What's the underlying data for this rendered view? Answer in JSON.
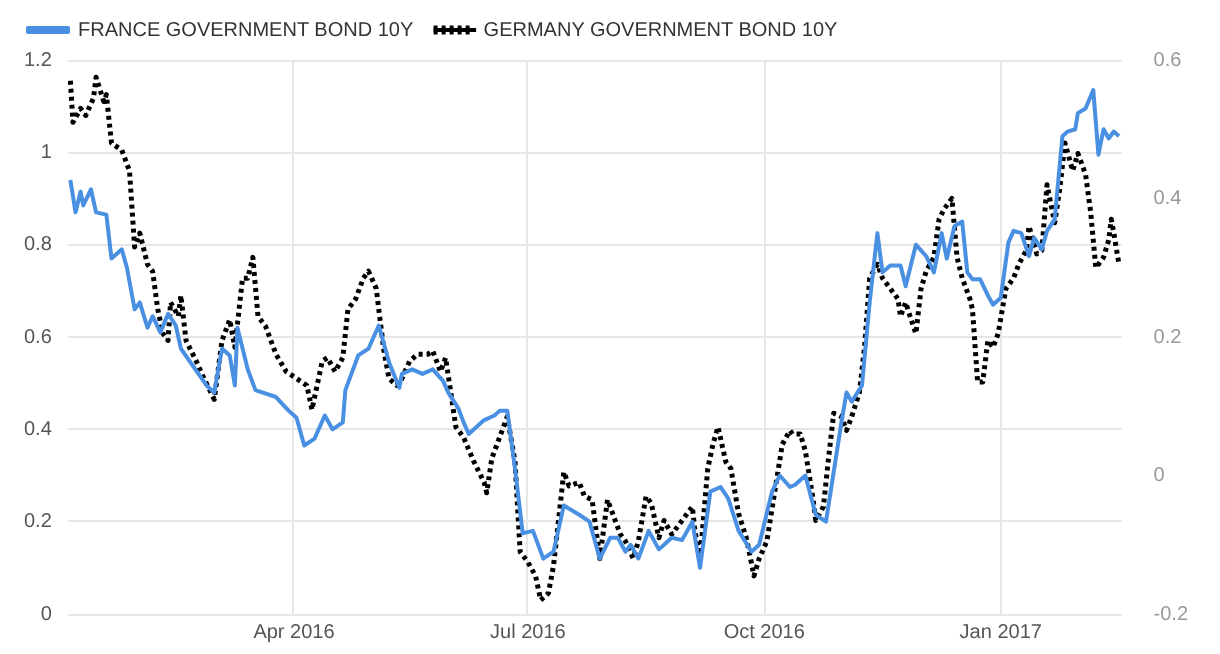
{
  "chart_data": {
    "type": "line",
    "legend": "top left",
    "grid": true,
    "marker": "none",
    "xlim": [
      "2016-01-04",
      "2017-02-17"
    ],
    "xticks": [
      {
        "value": "2016-04-01",
        "label": "Apr 2016"
      },
      {
        "value": "2016-07-01",
        "label": "Jul 2016"
      },
      {
        "value": "2016-10-01",
        "label": "Oct 2016"
      },
      {
        "value": "2017-01-01",
        "label": "Jan 2017"
      }
    ],
    "ylim": [
      0,
      1.2
    ],
    "yticks": [
      0,
      0.2,
      0.4,
      0.6,
      0.8,
      1,
      1.2
    ],
    "y2lim": [
      -0.2,
      0.6
    ],
    "y2ticks": [
      -0.2,
      0,
      0.2,
      0.4,
      0.6
    ],
    "series": [
      {
        "name": "FRANCE GOVERNMENT BOND 10Y",
        "color": "#4a90e2",
        "line_style": "solid",
        "axis": "y",
        "x": [
          "2016-01-05",
          "2016-01-07",
          "2016-01-09",
          "2016-01-10",
          "2016-01-13",
          "2016-01-15",
          "2016-01-19",
          "2016-01-21",
          "2016-01-25",
          "2016-01-27",
          "2016-01-30",
          "2016-02-01",
          "2016-02-04",
          "2016-02-06",
          "2016-02-09",
          "2016-02-12",
          "2016-02-15",
          "2016-02-17",
          "2016-02-22",
          "2016-02-27",
          "2016-03-01",
          "2016-03-04",
          "2016-03-07",
          "2016-03-09",
          "2016-03-10",
          "2016-03-14",
          "2016-03-17",
          "2016-03-25",
          "2016-03-30",
          "2016-04-02",
          "2016-04-05",
          "2016-04-09",
          "2016-04-13",
          "2016-04-16",
          "2016-04-20",
          "2016-04-21",
          "2016-04-26",
          "2016-04-30",
          "2016-05-04",
          "2016-05-08",
          "2016-05-12",
          "2016-05-13",
          "2016-05-17",
          "2016-05-21",
          "2016-05-25",
          "2016-05-29",
          "2016-05-31",
          "2016-06-04",
          "2016-06-06",
          "2016-06-08",
          "2016-06-14",
          "2016-06-18",
          "2016-06-20",
          "2016-06-23",
          "2016-06-26",
          "2016-06-29",
          "2016-07-03",
          "2016-07-07",
          "2016-07-11",
          "2016-07-15",
          "2016-07-21",
          "2016-07-25",
          "2016-07-29",
          "2016-08-02",
          "2016-08-05",
          "2016-08-08",
          "2016-08-10",
          "2016-08-13",
          "2016-08-17",
          "2016-08-21",
          "2016-08-26",
          "2016-08-30",
          "2016-09-03",
          "2016-09-06",
          "2016-09-10",
          "2016-09-14",
          "2016-09-17",
          "2016-09-21",
          "2016-09-26",
          "2016-09-29",
          "2016-10-04",
          "2016-10-07",
          "2016-10-11",
          "2016-10-13",
          "2016-10-17",
          "2016-10-21",
          "2016-10-25",
          "2016-10-31",
          "2016-11-02",
          "2016-11-04",
          "2016-11-08",
          "2016-11-11",
          "2016-11-14",
          "2016-11-16",
          "2016-11-19",
          "2016-11-23",
          "2016-11-25",
          "2016-11-29",
          "2016-12-03",
          "2016-12-06",
          "2016-12-09",
          "2016-12-11",
          "2016-12-14",
          "2016-12-17",
          "2016-12-19",
          "2016-12-21",
          "2016-12-24",
          "2016-12-27",
          "2016-12-29",
          "2017-01-01",
          "2017-01-04",
          "2017-01-06",
          "2017-01-09",
          "2017-01-12",
          "2017-01-14",
          "2017-01-17",
          "2017-01-19",
          "2017-01-22",
          "2017-01-25",
          "2017-01-27",
          "2017-01-30",
          "2017-01-31",
          "2017-02-03",
          "2017-02-06",
          "2017-02-08",
          "2017-02-10",
          "2017-02-12",
          "2017-02-14",
          "2017-02-16"
        ],
        "values": [
          0.94,
          0.87,
          0.915,
          0.885,
          0.92,
          0.87,
          0.865,
          0.77,
          0.79,
          0.75,
          0.66,
          0.675,
          0.62,
          0.645,
          0.61,
          0.65,
          0.625,
          0.575,
          0.535,
          0.495,
          0.48,
          0.575,
          0.56,
          0.495,
          0.62,
          0.53,
          0.485,
          0.47,
          0.44,
          0.425,
          0.365,
          0.38,
          0.43,
          0.4,
          0.415,
          0.485,
          0.56,
          0.575,
          0.625,
          0.545,
          0.49,
          0.52,
          0.53,
          0.52,
          0.53,
          0.505,
          0.48,
          0.445,
          0.415,
          0.39,
          0.42,
          0.43,
          0.44,
          0.44,
          0.315,
          0.175,
          0.18,
          0.12,
          0.135,
          0.235,
          0.215,
          0.2,
          0.12,
          0.165,
          0.165,
          0.135,
          0.15,
          0.12,
          0.18,
          0.14,
          0.165,
          0.16,
          0.2,
          0.1,
          0.265,
          0.275,
          0.25,
          0.18,
          0.135,
          0.15,
          0.265,
          0.3,
          0.275,
          0.28,
          0.3,
          0.215,
          0.2,
          0.415,
          0.48,
          0.46,
          0.495,
          0.675,
          0.825,
          0.74,
          0.755,
          0.755,
          0.71,
          0.8,
          0.775,
          0.74,
          0.825,
          0.77,
          0.84,
          0.85,
          0.74,
          0.725,
          0.725,
          0.69,
          0.67,
          0.685,
          0.805,
          0.83,
          0.825,
          0.775,
          0.815,
          0.79,
          0.83,
          0.855,
          1.035,
          1.045,
          1.05,
          1.085,
          1.095,
          1.135,
          0.995,
          1.05,
          1.03,
          1.045,
          1.035
        ]
      },
      {
        "name": "GERMANY GOVERNMENT BOND 10Y",
        "color": "#000000",
        "line_style": "dotted",
        "axis": "y2",
        "x": [
          "2016-01-05",
          "2016-01-06",
          "2016-01-09",
          "2016-01-11",
          "2016-01-14",
          "2016-01-15",
          "2016-01-18",
          "2016-01-19",
          "2016-01-21",
          "2016-01-23",
          "2016-01-25",
          "2016-01-28",
          "2016-01-30",
          "2016-02-01",
          "2016-02-04",
          "2016-02-06",
          "2016-02-08",
          "2016-02-10",
          "2016-02-12",
          "2016-02-13",
          "2016-02-16",
          "2016-02-17",
          "2016-02-19",
          "2016-02-23",
          "2016-02-26",
          "2016-03-01",
          "2016-03-04",
          "2016-03-07",
          "2016-03-09",
          "2016-03-12",
          "2016-03-14",
          "2016-03-16",
          "2016-03-18",
          "2016-03-21",
          "2016-03-25",
          "2016-03-29",
          "2016-04-02",
          "2016-04-06",
          "2016-04-08",
          "2016-04-12",
          "2016-04-14",
          "2016-04-17",
          "2016-04-20",
          "2016-04-22",
          "2016-04-25",
          "2016-04-28",
          "2016-04-30",
          "2016-05-03",
          "2016-05-06",
          "2016-05-08",
          "2016-05-11",
          "2016-05-13",
          "2016-05-16",
          "2016-05-19",
          "2016-05-23",
          "2016-05-25",
          "2016-05-28",
          "2016-05-30",
          "2016-06-01",
          "2016-06-03",
          "2016-06-06",
          "2016-06-10",
          "2016-06-14",
          "2016-06-15",
          "2016-06-17",
          "2016-06-20",
          "2016-06-23",
          "2016-06-26",
          "2016-06-28",
          "2016-07-01",
          "2016-07-04",
          "2016-07-06",
          "2016-07-09",
          "2016-07-11",
          "2016-07-15",
          "2016-07-17",
          "2016-07-21",
          "2016-07-23",
          "2016-07-26",
          "2016-07-29",
          "2016-08-01",
          "2016-08-04",
          "2016-08-06",
          "2016-08-08",
          "2016-08-11",
          "2016-08-13",
          "2016-08-16",
          "2016-08-18",
          "2016-08-21",
          "2016-08-23",
          "2016-08-26",
          "2016-08-29",
          "2016-08-31",
          "2016-09-03",
          "2016-09-04",
          "2016-09-06",
          "2016-09-09",
          "2016-09-11",
          "2016-09-13",
          "2016-09-16",
          "2016-09-18",
          "2016-09-21",
          "2016-09-24",
          "2016-09-27",
          "2016-09-29",
          "2016-10-02",
          "2016-10-05",
          "2016-10-08",
          "2016-10-11",
          "2016-10-12",
          "2016-10-15",
          "2016-10-17",
          "2016-10-20",
          "2016-10-21",
          "2016-10-24",
          "2016-10-26",
          "2016-10-28",
          "2016-10-31",
          "2016-11-02",
          "2016-11-04",
          "2016-11-07",
          "2016-11-09",
          "2016-11-11",
          "2016-11-14",
          "2016-11-16",
          "2016-11-19",
          "2016-11-22",
          "2016-11-23",
          "2016-11-25",
          "2016-11-28",
          "2016-11-29",
          "2016-12-01",
          "2016-12-03",
          "2016-12-06",
          "2016-12-08",
          "2016-12-10",
          "2016-12-13",
          "2016-12-15",
          "2016-12-17",
          "2016-12-20",
          "2016-12-21",
          "2016-12-23",
          "2016-12-25",
          "2016-12-27",
          "2016-12-29",
          "2016-12-31",
          "2017-01-03",
          "2017-01-06",
          "2017-01-08",
          "2017-01-11",
          "2017-01-12",
          "2017-01-15",
          "2017-01-17",
          "2017-01-19",
          "2017-01-22",
          "2017-01-24",
          "2017-01-26",
          "2017-01-29",
          "2017-01-31",
          "2017-02-03",
          "2017-02-05",
          "2017-02-07",
          "2017-02-10",
          "2017-02-12",
          "2017-02-13",
          "2017-02-14",
          "2017-02-16"
        ],
        "values": [
          0.57,
          0.51,
          0.53,
          0.52,
          0.545,
          0.575,
          0.54,
          0.55,
          0.48,
          0.475,
          0.47,
          0.44,
          0.33,
          0.35,
          0.305,
          0.295,
          0.24,
          0.205,
          0.195,
          0.25,
          0.23,
          0.26,
          0.195,
          0.165,
          0.14,
          0.11,
          0.195,
          0.225,
          0.185,
          0.285,
          0.285,
          0.315,
          0.23,
          0.215,
          0.175,
          0.15,
          0.14,
          0.13,
          0.095,
          0.165,
          0.17,
          0.15,
          0.17,
          0.24,
          0.255,
          0.285,
          0.295,
          0.27,
          0.18,
          0.14,
          0.13,
          0.14,
          0.165,
          0.175,
          0.175,
          0.18,
          0.15,
          0.17,
          0.12,
          0.07,
          0.055,
          0.02,
          -0.01,
          -0.025,
          0.025,
          0.055,
          0.085,
          0.02,
          -0.11,
          -0.125,
          -0.145,
          -0.18,
          -0.17,
          -0.13,
          0.005,
          -0.015,
          -0.01,
          -0.03,
          -0.035,
          -0.12,
          -0.035,
          -0.065,
          -0.085,
          -0.095,
          -0.12,
          -0.095,
          -0.03,
          -0.04,
          -0.09,
          -0.065,
          -0.085,
          -0.07,
          -0.06,
          -0.045,
          -0.08,
          -0.12,
          0.01,
          0.045,
          0.07,
          0.02,
          0.01,
          -0.055,
          -0.09,
          -0.145,
          -0.12,
          -0.095,
          -0.025,
          0.045,
          0.065,
          0.06,
          0.06,
          0.035,
          -0.035,
          -0.065,
          -0.045,
          0.025,
          0.09,
          0.085,
          0.065,
          0.085,
          0.12,
          0.185,
          0.285,
          0.305,
          0.285,
          0.27,
          0.255,
          0.23,
          0.25,
          0.215,
          0.205,
          0.27,
          0.295,
          0.315,
          0.37,
          0.385,
          0.4,
          0.315,
          0.285,
          0.255,
          0.24,
          0.135,
          0.135,
          0.195,
          0.185,
          0.205,
          0.27,
          0.285,
          0.305,
          0.325,
          0.36,
          0.32,
          0.325,
          0.42,
          0.365,
          0.415,
          0.48,
          0.44,
          0.465,
          0.435,
          0.38,
          0.3,
          0.315,
          0.34,
          0.37,
          0.35,
          0.305
        ]
      }
    ]
  }
}
